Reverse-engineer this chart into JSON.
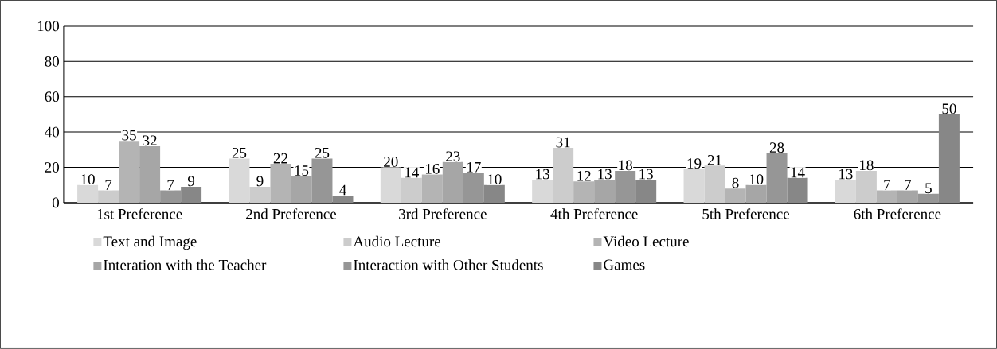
{
  "chart_data": {
    "type": "bar",
    "categories": [
      "1st Preference",
      "2nd Preference",
      "3rd Preference",
      "4th Preference",
      "5th Preference",
      "6th Preference"
    ],
    "series": [
      {
        "name": "Text and Image",
        "color": "#d9d9d9",
        "values": [
          10,
          25,
          20,
          13,
          19,
          13
        ]
      },
      {
        "name": "Audio Lecture",
        "color": "#cccccc",
        "values": [
          7,
          9,
          14,
          31,
          21,
          18
        ]
      },
      {
        "name": "Video Lecture",
        "color": "#b4b4b4",
        "values": [
          35,
          22,
          16,
          12,
          8,
          7
        ]
      },
      {
        "name": "Interation with the Teacher",
        "color": "#a6a6a6",
        "values": [
          32,
          15,
          23,
          13,
          10,
          7
        ]
      },
      {
        "name": "Interaction with Other Students",
        "color": "#969696",
        "values": [
          7,
          25,
          17,
          18,
          28,
          5
        ]
      },
      {
        "name": "Games",
        "color": "#878787",
        "values": [
          9,
          4,
          10,
          13,
          14,
          50
        ]
      }
    ],
    "ylim": [
      0,
      100
    ],
    "yticks": [
      0,
      20,
      40,
      60,
      80,
      100
    ],
    "grid": "y",
    "legend": "bottom",
    "data_labels": true
  }
}
